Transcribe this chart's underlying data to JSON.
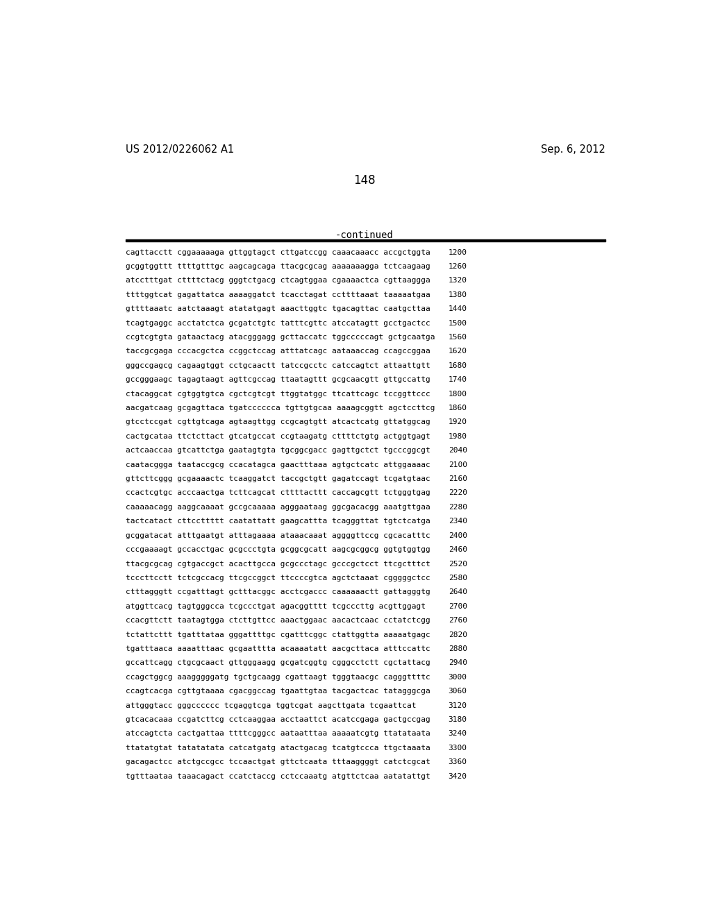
{
  "header_left": "US 2012/0226062 A1",
  "header_right": "Sep. 6, 2012",
  "page_number": "148",
  "continued_label": "-continued",
  "background_color": "#ffffff",
  "text_color": "#000000",
  "sequence_lines": [
    [
      "cagttacctt cggaaaaaga gttggtagct cttgatccgg caaacaaacc accgctggta",
      "1200"
    ],
    [
      "gcggtggttt ttttgtttgc aagcagcaga ttacgcgcag aaaaaaagga tctcaagaag",
      "1260"
    ],
    [
      "atcctttgat cttttctacg gggtctgacg ctcagtggaa cgaaaactca cgttaaggga",
      "1320"
    ],
    [
      "ttttggtcat gagattatca aaaaggatct tcacctagat ccttttaaat taaaaatgaa",
      "1380"
    ],
    [
      "gttttaaatc aatctaaagt atatatgagt aaacttggtc tgacagttac caatgcttaa",
      "1440"
    ],
    [
      "tcagtgaggc acctatctca gcgatctgtc tatttcgttc atccatagtt gcctgactcc",
      "1500"
    ],
    [
      "ccgtcgtgta gataactacg atacgggagg gcttaccatc tggcccccagt gctgcaatga",
      "1560"
    ],
    [
      "taccgcgaga cccacgctca ccggctccag atttatcagc aataaaccag ccagccggaa",
      "1620"
    ],
    [
      "gggccgagcg cagaagtggt cctgcaactt tatccgcctc catccagtct attaattgtt",
      "1680"
    ],
    [
      "gccgggaagc tagagtaagt agttcgccag ttaatagttt gcgcaacgtt gttgccattg",
      "1740"
    ],
    [
      "ctacaggcat cgtggtgtca cgctcgtcgt ttggtatggc ttcattcagc tccggttccc",
      "1800"
    ],
    [
      "aacgatcaag gcgagttaca tgatcccccca tgttgtgcaa aaaagcggtt agctccttcg",
      "1860"
    ],
    [
      "gtcctccgat cgttgtcaga agtaagttgg ccgcagtgtt atcactcatg gttatggcag",
      "1920"
    ],
    [
      "cactgcataa ttctcttact gtcatgccat ccgtaagatg cttttctgtg actggtgagt",
      "1980"
    ],
    [
      "actcaaccaa gtcattctga gaatagtgta tgcggcgacc gagttgctct tgcccggcgt",
      "2040"
    ],
    [
      "caatacggga taataccgcg ccacatagca gaactttaaa agtgctcatc attggaaaac",
      "2100"
    ],
    [
      "gttcttcggg gcgaaaactc tcaaggatct taccgctgtt gagatccagt tcgatgtaac",
      "2160"
    ],
    [
      "ccactcgtgc acccaactga tcttcagcat cttttacttt caccagcgtt tctgggtgag",
      "2220"
    ],
    [
      "caaaaacagg aaggcaaaat gccgcaaaaa agggaataag ggcgacacgg aaatgttgaa",
      "2280"
    ],
    [
      "tactcatact cttccttttt caatattatt gaagcattta tcagggttat tgtctcatga",
      "2340"
    ],
    [
      "gcggatacat atttgaatgt atttagaaaa ataaacaaat aggggttccg cgcacatttc",
      "2400"
    ],
    [
      "cccgaaaagt gccacctgac gcgccctgta gcggcgcatt aagcgcggcg ggtgtggtgg",
      "2460"
    ],
    [
      "ttacgcgcag cgtgaccgct acacttgcca gcgccctagc gcccgctcct ttcgctttct",
      "2520"
    ],
    [
      "tcccttcctt tctcgccacg ttcgccggct ttccccgtca agctctaaat cgggggctcc",
      "2580"
    ],
    [
      "ctttagggtt ccgatttagt gctttacggc acctcgaccc caaaaaactt gattagggtg",
      "2640"
    ],
    [
      "atggttcacg tagtgggcca tcgccctgat agacggtttt tcgcccttg acgttggagt",
      "2700"
    ],
    [
      "ccacgttctt taatagtgga ctcttgttcc aaactggaac aacactcaac cctatctcgg",
      "2760"
    ],
    [
      "tctattcttt tgatttataa gggattttgc cgatttcggc ctattggtta aaaaatgagc",
      "2820"
    ],
    [
      "tgatttaaca aaaatttaac gcgaatttta acaaaatatt aacgcttaca atttccattc",
      "2880"
    ],
    [
      "gccattcagg ctgcgcaact gttgggaagg gcgatcggtg cgggcctctt cgctattacg",
      "2940"
    ],
    [
      "ccagctggcg aaagggggatg tgctgcaagg cgattaagt tgggtaacgc cagggttttc",
      "3000"
    ],
    [
      "ccagtcacga cgttgtaaaa cgacggccag tgaattgtaa tacgactcac tatagggcga",
      "3060"
    ],
    [
      "attgggtacc gggcccccc tcgaggtcga tggtcgat aagcttgata tcgaattcat",
      "3120"
    ],
    [
      "gtcacacaaa ccgatcttcg cctcaaggaa acctaattct acatccgaga gactgccgag",
      "3180"
    ],
    [
      "atccagtcta cactgattaa ttttcgggcc aataatttaa aaaaatcgtg ttatataata",
      "3240"
    ],
    [
      "ttatatgtat tatatatata catcatgatg atactgacag tcatgtccca ttgctaaata",
      "3300"
    ],
    [
      "gacagactcc atctgccgcc tccaactgat gttctcaata tttaaggggt catctcgcat",
      "3360"
    ],
    [
      "tgtttaataa taaacagact ccatctaccg cctccaaatg atgttctcaa aatatattgt",
      "3420"
    ]
  ]
}
